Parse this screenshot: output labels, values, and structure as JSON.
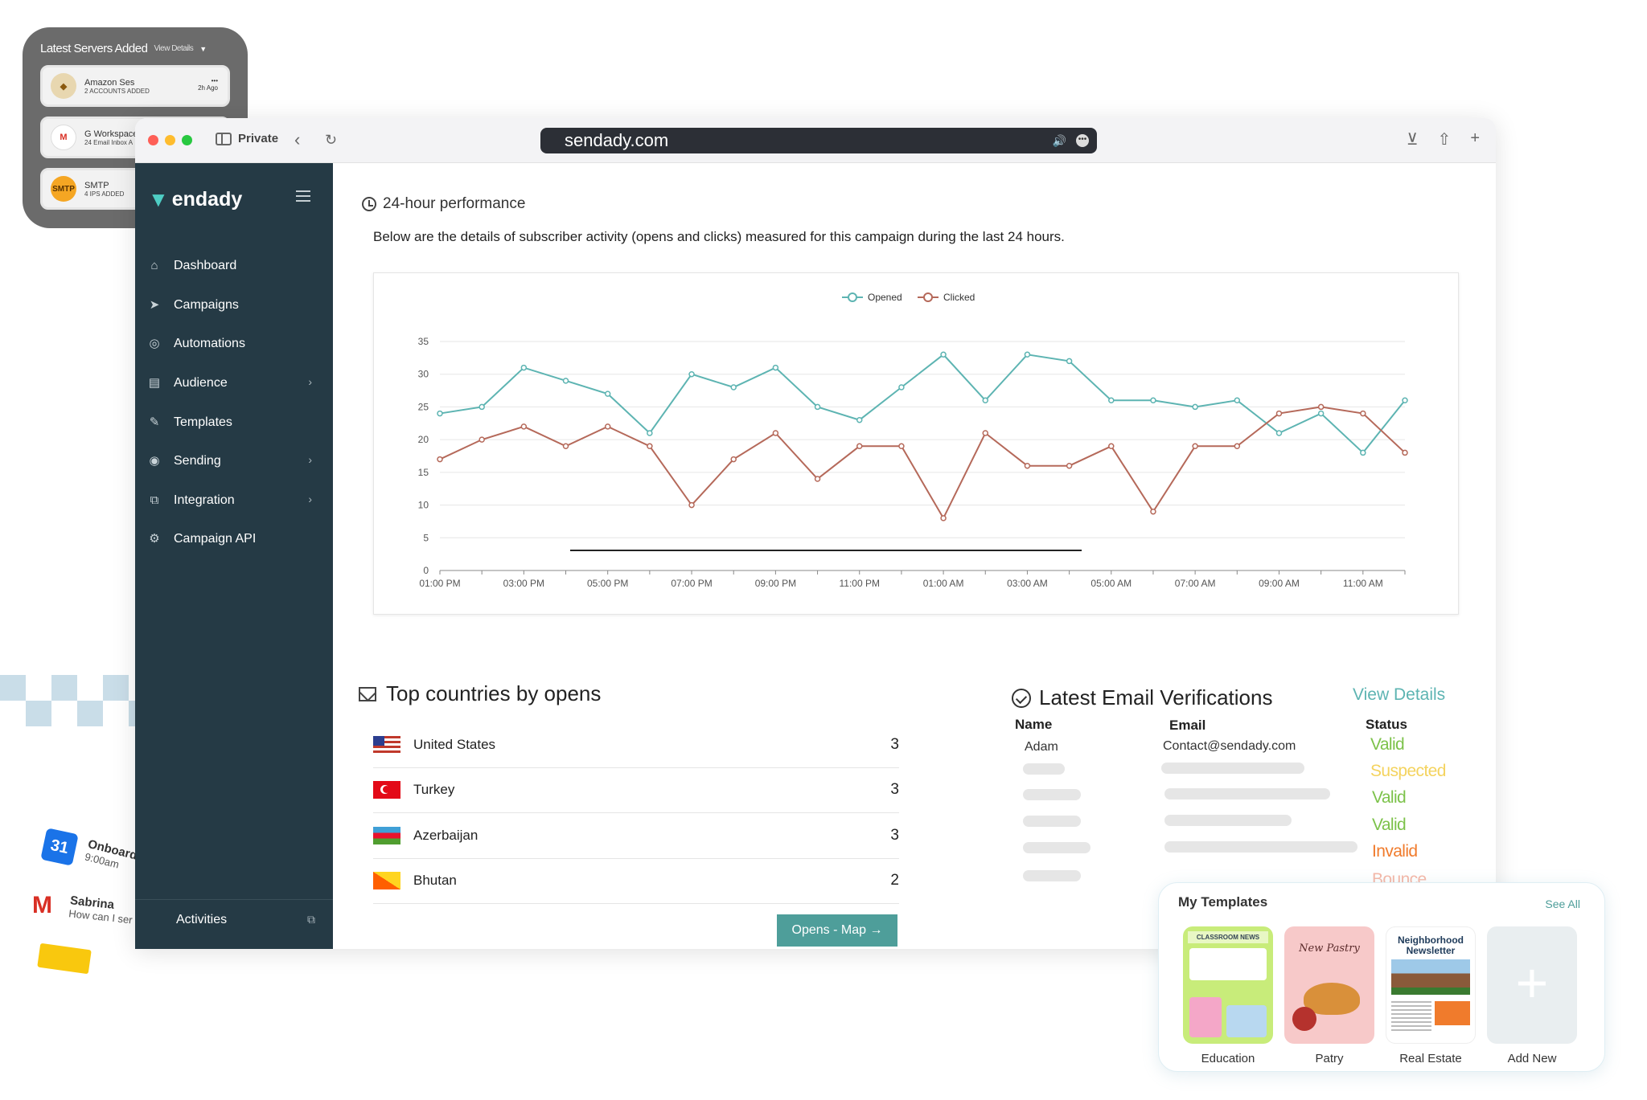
{
  "servers_card": {
    "title": "Latest Servers Added",
    "view_details": "View Details",
    "items": [
      {
        "name": "Amazon Ses",
        "sub": "2 ACCOUNTS ADDED",
        "ago": "2h Ago",
        "logo": "amazon-ses"
      },
      {
        "name": "G Workspace",
        "sub": "24 Email Inbox A",
        "logo": "gmail"
      },
      {
        "name": "SMTP",
        "sub": "4 IPS ADDED",
        "logo": "SMTP"
      }
    ]
  },
  "browser": {
    "private_label": "Private",
    "url": "sendady.com"
  },
  "sidebar": {
    "brand": "endady",
    "items": [
      {
        "label": "Dashboard",
        "icon": "home-icon"
      },
      {
        "label": "Campaigns",
        "icon": "send-icon"
      },
      {
        "label": "Automations",
        "icon": "shield-check-icon"
      },
      {
        "label": "Audience",
        "icon": "audience-icon",
        "has_children": true
      },
      {
        "label": "Templates",
        "icon": "edit-icon"
      },
      {
        "label": "Sending",
        "icon": "sending-icon",
        "has_children": true
      },
      {
        "label": "Integration",
        "icon": "integration-icon",
        "has_children": true
      },
      {
        "label": "Campaign API",
        "icon": "api-gear-icon"
      }
    ],
    "activities": "Activities"
  },
  "performance": {
    "title": "24-hour performance",
    "description": "Below are the details of subscriber activity (opens and clicks) measured for this campaign during the last 24 hours."
  },
  "chart_data": {
    "type": "line",
    "x": [
      "01:00 PM",
      "02:00 PM",
      "03:00 PM",
      "04:00 PM",
      "05:00 PM",
      "06:00 PM",
      "07:00 PM",
      "08:00 PM",
      "09:00 PM",
      "10:00 PM",
      "11:00 PM",
      "12:00 AM",
      "01:00 AM",
      "02:00 AM",
      "03:00 AM",
      "04:00 AM",
      "05:00 AM",
      "06:00 AM",
      "07:00 AM",
      "08:00 AM",
      "09:00 AM",
      "10:00 AM",
      "11:00 AM",
      "12:00 PM"
    ],
    "x_tick_labels": [
      "01:00 PM",
      "03:00 PM",
      "05:00 PM",
      "07:00 PM",
      "09:00 PM",
      "11:00 PM",
      "01:00 AM",
      "03:00 AM",
      "05:00 AM",
      "07:00 AM",
      "09:00 AM",
      "11:00 AM"
    ],
    "series": [
      {
        "name": "Opened",
        "color": "#5db4b2",
        "values": [
          24,
          25,
          31,
          29,
          27,
          21,
          30,
          28,
          31,
          25,
          23,
          28,
          33,
          26,
          33,
          32,
          26,
          26,
          25,
          26,
          21,
          24,
          18,
          26
        ]
      },
      {
        "name": "Clicked",
        "color": "#b5695a",
        "values": [
          17,
          20,
          22,
          19,
          22,
          19,
          10,
          17,
          21,
          14,
          19,
          19,
          8,
          21,
          16,
          16,
          19,
          9,
          19,
          19,
          24,
          25,
          24,
          18
        ]
      }
    ],
    "ylim": [
      0,
      35
    ],
    "y_ticks": [
      0,
      5,
      10,
      15,
      20,
      25,
      30,
      35
    ],
    "grid": true,
    "legend": "top-center"
  },
  "countries": {
    "title": "Top countries by opens",
    "rows": [
      {
        "name": "United States",
        "count": "3"
      },
      {
        "name": "Turkey",
        "count": "3"
      },
      {
        "name": "Azerbaijan",
        "count": "3"
      },
      {
        "name": "Bhutan",
        "count": "2"
      }
    ],
    "button": "Opens - Map →"
  },
  "verifications": {
    "title": "Latest Email Verifications",
    "view_details": "View Details",
    "headers": {
      "name": "Name",
      "email": "Email",
      "status": "Status"
    },
    "first_row": {
      "name": "Adam",
      "email": "Contact@sendady.com"
    },
    "statuses": [
      {
        "label": "Valid",
        "color": "#7cc24a"
      },
      {
        "label": "Suspected",
        "color": "#f4d35e"
      },
      {
        "label": "Valid",
        "color": "#7cc24a"
      },
      {
        "label": "Valid",
        "color": "#7cc24a"
      },
      {
        "label": "Invalid",
        "color": "#f07b2c"
      },
      {
        "label": "Bounce",
        "color": "#f5b8a8"
      }
    ]
  },
  "templates": {
    "title": "My Templates",
    "see_all": "See All",
    "items": [
      {
        "label": "Education",
        "thumb_text": "CLASSROOM NEWS"
      },
      {
        "label": "Patry",
        "thumb_text": "New Pastry"
      },
      {
        "label": "Real Estate",
        "thumb_text": "Neighborhood Newsletter"
      },
      {
        "label": "Add New"
      }
    ]
  },
  "background": {
    "calendar_day": "31",
    "event_title": "Onboardi",
    "event_time": "9:00am",
    "mail_sender": "Sabrina",
    "mail_preview": "How can I ser"
  }
}
